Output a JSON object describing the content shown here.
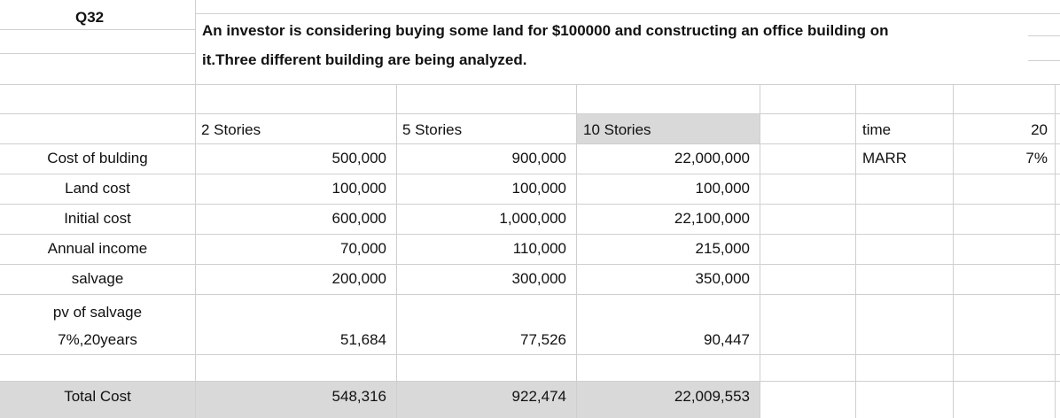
{
  "question": "Q32",
  "problem": [
    "An investor is considering buying some land for $100000 and constructing an office building on",
    "it.Three different building are being analyzed."
  ],
  "table": {
    "columns": [
      "2 Stories",
      "5 Stories",
      "10 Stories"
    ],
    "rows": [
      {
        "label": [
          "Cost of bulding"
        ],
        "values": [
          "500,000",
          "900,000",
          "22,000,000"
        ]
      },
      {
        "label": [
          "Land cost"
        ],
        "values": [
          "100,000",
          "100,000",
          "100,000"
        ]
      },
      {
        "label": [
          "Initial cost"
        ],
        "values": [
          "600,000",
          "1,000,000",
          "22,100,000"
        ]
      },
      {
        "label": [
          "Annual income"
        ],
        "values": [
          "70,000",
          "110,000",
          "215,000"
        ]
      },
      {
        "label": [
          "salvage"
        ],
        "values": [
          "200,000",
          "300,000",
          "350,000"
        ]
      },
      {
        "label": [
          "pv of salvage",
          "7%,20years"
        ],
        "values": [
          "51,684",
          "77,526",
          "90,447"
        ]
      },
      {
        "label": [
          "Total Cost"
        ],
        "values": [
          "548,316",
          "922,474",
          "22,009,553"
        ]
      }
    ]
  },
  "parameters": [
    {
      "label": "time",
      "value": "20"
    },
    {
      "label": "MARR",
      "value": "7%"
    }
  ]
}
